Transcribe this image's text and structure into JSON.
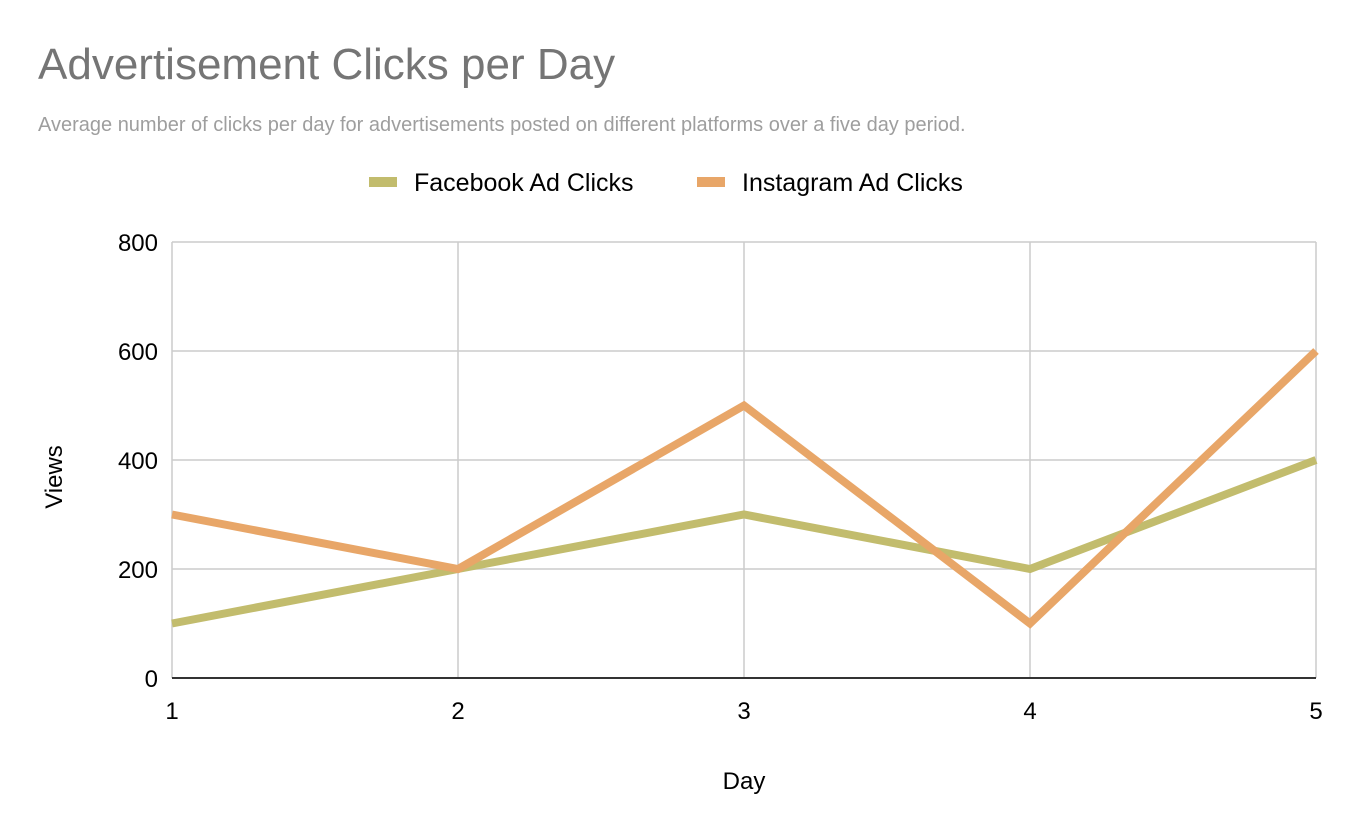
{
  "chart_data": {
    "type": "line",
    "title": "Advertisement Clicks per Day",
    "subtitle": "Average number of clicks per day for advertisements posted on different platforms over a five day period.",
    "xlabel": "Day",
    "ylabel": "Views",
    "x": [
      1,
      2,
      3,
      4,
      5
    ],
    "xlim": [
      1,
      5
    ],
    "ylim": [
      0,
      800
    ],
    "yticks": [
      0,
      200,
      400,
      600,
      800
    ],
    "grid": true,
    "legend_position": "top",
    "series": [
      {
        "name": "Facebook Ad Clicks",
        "color": "#c2bc6d",
        "values": [
          100,
          200,
          300,
          200,
          400
        ]
      },
      {
        "name": "Instagram Ad Clicks",
        "color": "#e8a668",
        "values": [
          300,
          200,
          500,
          100,
          600
        ]
      }
    ]
  }
}
